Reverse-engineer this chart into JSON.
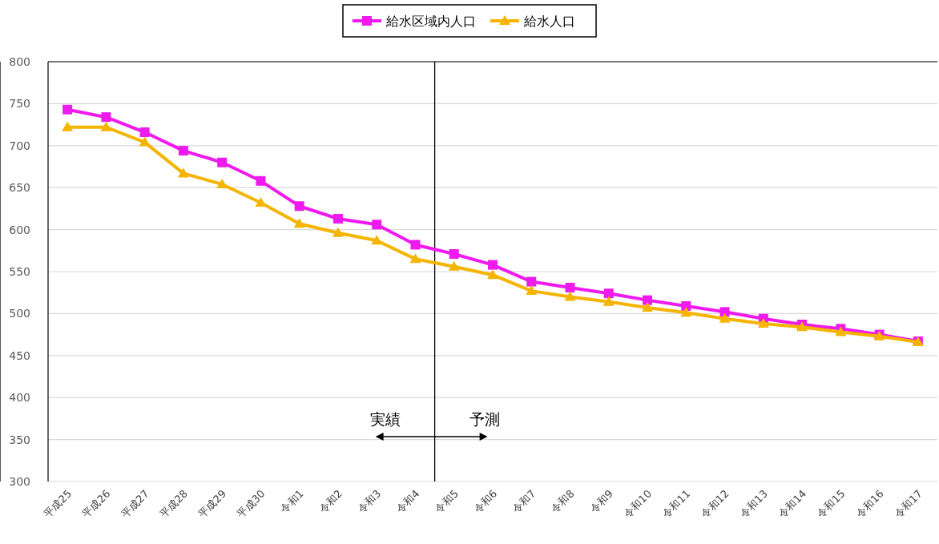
{
  "chart_data": {
    "type": "line",
    "categories": [
      "平成25",
      "平成26",
      "平成27",
      "平成28",
      "平成29",
      "平成30",
      "令和1",
      "令和2",
      "令和3",
      "令和4",
      "令和5",
      "令和6",
      "令和7",
      "令和8",
      "令和9",
      "令和10",
      "令和11",
      "令和12",
      "令和13",
      "令和14",
      "令和15",
      "令和16",
      "令和17"
    ],
    "series": [
      {
        "name": "給水区域内人口",
        "color": "#ee1aee",
        "marker": "square",
        "values": [
          743,
          734,
          716,
          694,
          680,
          658,
          628,
          613,
          606,
          582,
          571,
          558,
          538,
          531,
          524,
          516,
          509,
          502,
          494,
          487,
          482,
          475,
          467
        ]
      },
      {
        "name": "給水人口",
        "color": "#f5b400",
        "marker": "triangle",
        "values": [
          722,
          722,
          704,
          667,
          654,
          632,
          607,
          596,
          587,
          565,
          556,
          546,
          527,
          520,
          514,
          507,
          501,
          494,
          488,
          484,
          478,
          473,
          466
        ]
      }
    ],
    "ylim": [
      300,
      800
    ],
    "yticks": [
      300,
      350,
      400,
      450,
      500,
      550,
      600,
      650,
      700,
      750,
      800
    ],
    "grid": "y",
    "legend": "top",
    "ref_lines": [
      {
        "axis": "x",
        "value": "令和4",
        "color": "#000000"
      }
    ],
    "annotations": [
      "実績",
      "予測"
    ]
  }
}
